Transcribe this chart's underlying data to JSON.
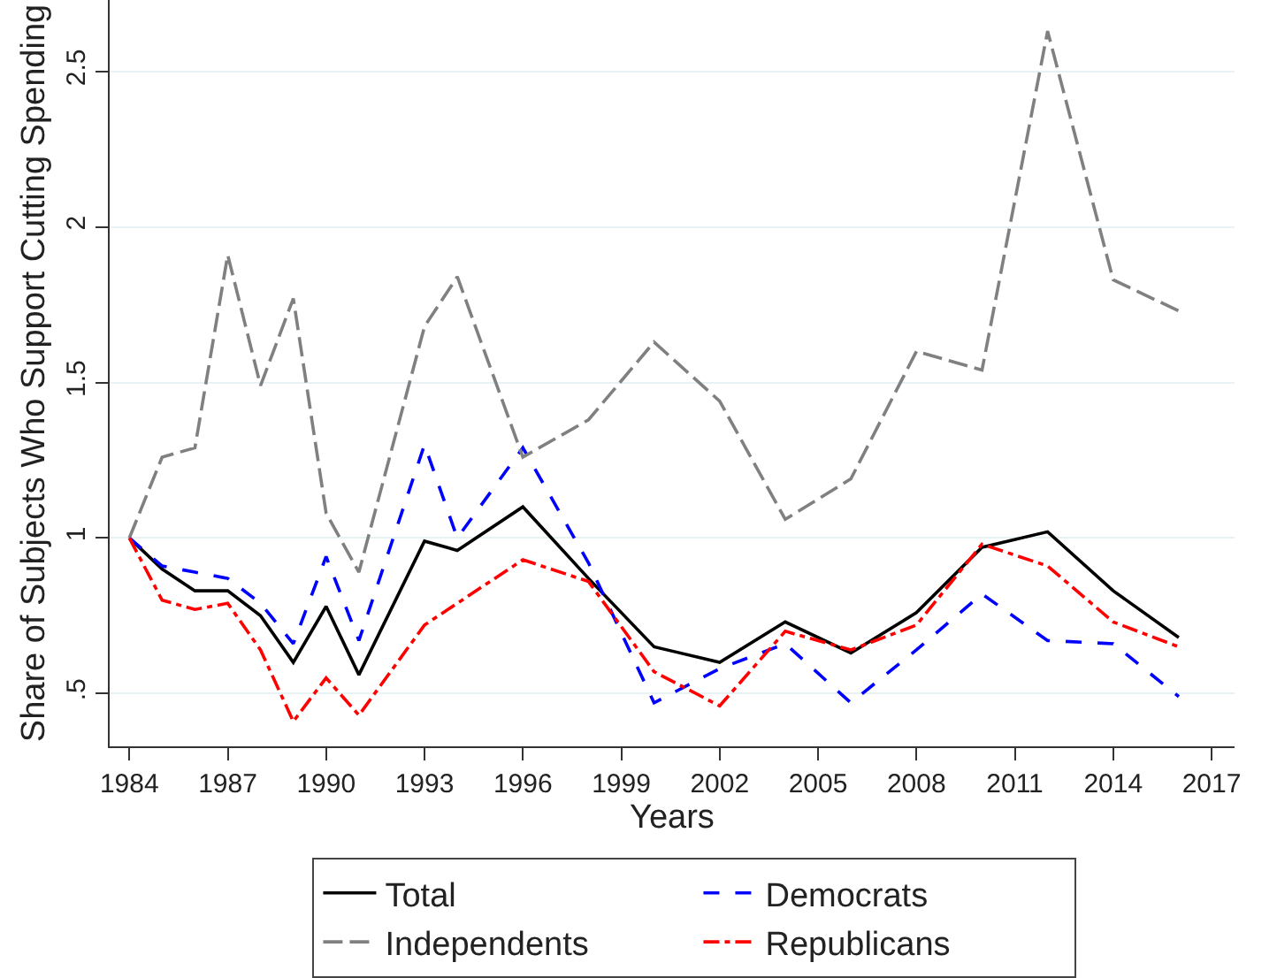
{
  "chart_data": {
    "type": "line",
    "xlabel": "Years",
    "ylabel": "Share of Subjects Who Support Cutting Spending",
    "x": [
      1984,
      1985,
      1986,
      1987,
      1988,
      1989,
      1990,
      1991,
      1993,
      1994,
      1996,
      1998,
      2000,
      2002,
      2004,
      2006,
      2008,
      2010,
      2012,
      2014,
      2016
    ],
    "series": [
      {
        "name": "Total",
        "color": "#000000",
        "line_style": "solid",
        "values": [
          1,
          0.9,
          0.83,
          0.83,
          0.75,
          0.6,
          0.78,
          0.56,
          0.99,
          0.96,
          1.1,
          0.87,
          0.65,
          0.6,
          0.73,
          0.63,
          0.76,
          0.97,
          1.02,
          0.83,
          0.68
        ]
      },
      {
        "name": "Democrats",
        "color": "#0000ff",
        "line_style": "dashed",
        "values": [
          1,
          0.91,
          0.89,
          0.87,
          0.79,
          0.66,
          0.94,
          0.67,
          1.3,
          1.0,
          1.29,
          0.92,
          0.47,
          0.58,
          0.66,
          0.47,
          0.64,
          0.82,
          0.67,
          0.66,
          0.49
        ]
      },
      {
        "name": "Independents",
        "color": "#808080",
        "line_style": "long dashed",
        "values": [
          1,
          1.26,
          1.29,
          1.91,
          1.49,
          1.77,
          1.08,
          0.89,
          1.68,
          1.84,
          1.26,
          1.38,
          1.63,
          1.44,
          1.06,
          1.19,
          1.6,
          1.54,
          2.63,
          1.83,
          1.73
        ]
      },
      {
        "name": "Republicans",
        "color": "#ff0000",
        "line_style": "dash-dot",
        "values": [
          1,
          0.8,
          0.77,
          0.79,
          0.64,
          0.41,
          0.55,
          0.43,
          0.72,
          0.79,
          0.93,
          0.86,
          0.57,
          0.46,
          0.7,
          0.64,
          0.72,
          0.98,
          0.91,
          0.73,
          0.65
        ]
      }
    ],
    "xlim": [
      1983.4,
      2017.7
    ],
    "xticks": [
      1984,
      1987,
      1990,
      1993,
      1996,
      1999,
      2002,
      2005,
      2008,
      2011,
      2014,
      2017
    ],
    "ylim": [
      0.33,
      2.73
    ],
    "yticks": [
      {
        "value": 0.5,
        "label": ".5"
      },
      1,
      1.5,
      2,
      2.5
    ],
    "grid": "y",
    "legend": "bottom",
    "marker": "none"
  }
}
